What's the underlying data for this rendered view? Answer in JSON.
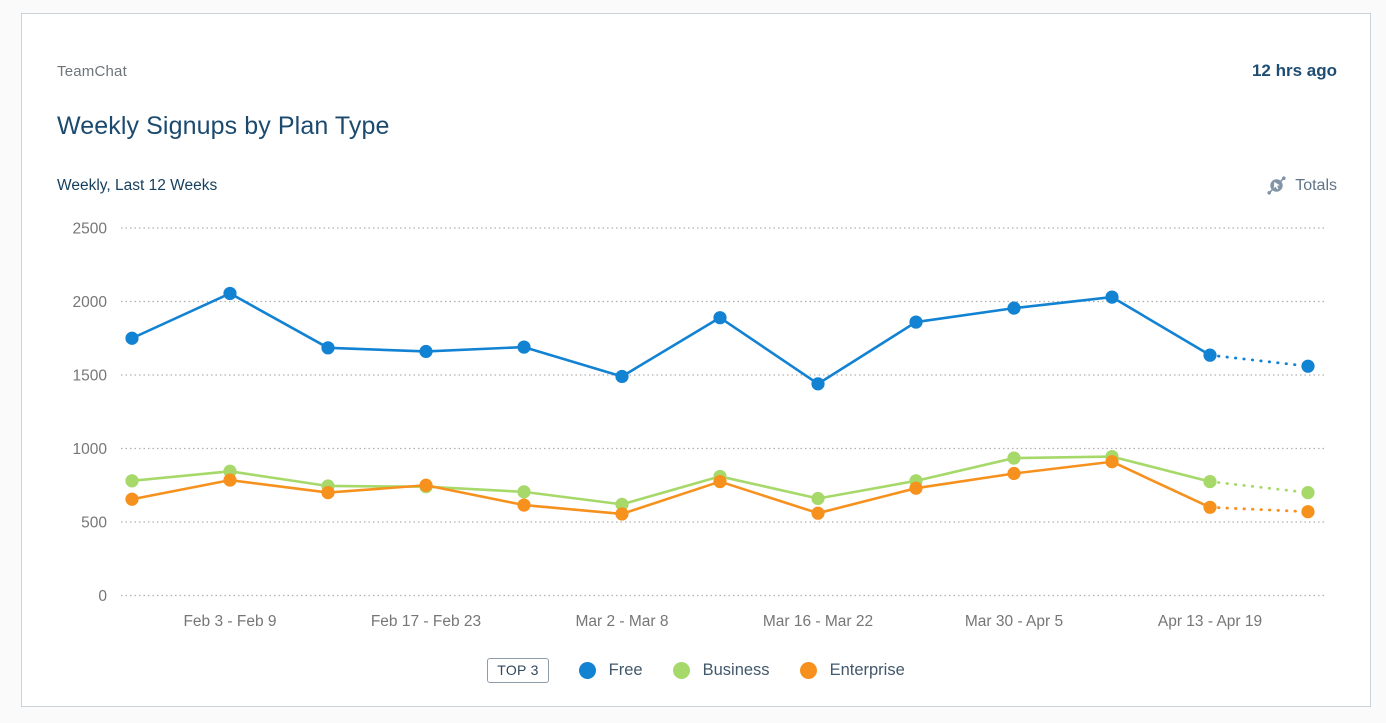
{
  "card": {
    "app_name": "TeamChat",
    "updated": "12 hrs ago",
    "title": "Weekly Signups by Plan Type",
    "subtitle": "Weekly, Last 12 Weeks",
    "totals_label": "Totals"
  },
  "legend": {
    "badge": "TOP 3",
    "items": [
      {
        "label": "Free",
        "color": "#1282d3"
      },
      {
        "label": "Business",
        "color": "#a6d96a"
      },
      {
        "label": "Enterprise",
        "color": "#f6911e"
      }
    ]
  },
  "colors": {
    "grid": "#b0b0b0",
    "axis_text": "#767676",
    "card_border": "#c9d3da",
    "title_text": "#1b4a6e"
  },
  "chart_data": {
    "type": "line",
    "title": "Weekly Signups by Plan Type",
    "subtitle": "Weekly, Last 12 Weeks",
    "num_points": 13,
    "x_tick_labels": [
      "Feb 3 - Feb 9",
      "Feb 17 - Feb 23",
      "Mar 2 - Mar 8",
      "Mar 16 - Mar 22",
      "Mar 30 - Apr 5",
      "Apr 13 - Apr 19"
    ],
    "x_tick_indices": [
      1,
      3,
      5,
      7,
      9,
      11
    ],
    "y_ticks": [
      0,
      500,
      1000,
      1500,
      2000,
      2500
    ],
    "ylim": [
      0,
      2500
    ],
    "grid": "horizontal-dotted",
    "legend_position": "bottom",
    "projected_last_segment": true,
    "series": [
      {
        "name": "Free",
        "color": "#1282d3",
        "values": [
          1750,
          2055,
          1685,
          1660,
          1690,
          1490,
          1890,
          1440,
          1860,
          1955,
          2030,
          1635,
          1560
        ]
      },
      {
        "name": "Business",
        "color": "#a6d96a",
        "values": [
          780,
          845,
          745,
          740,
          705,
          620,
          810,
          660,
          780,
          935,
          945,
          775,
          700
        ]
      },
      {
        "name": "Enterprise",
        "color": "#f6911e",
        "values": [
          655,
          785,
          700,
          750,
          615,
          555,
          775,
          560,
          730,
          830,
          910,
          600,
          570
        ]
      }
    ]
  }
}
